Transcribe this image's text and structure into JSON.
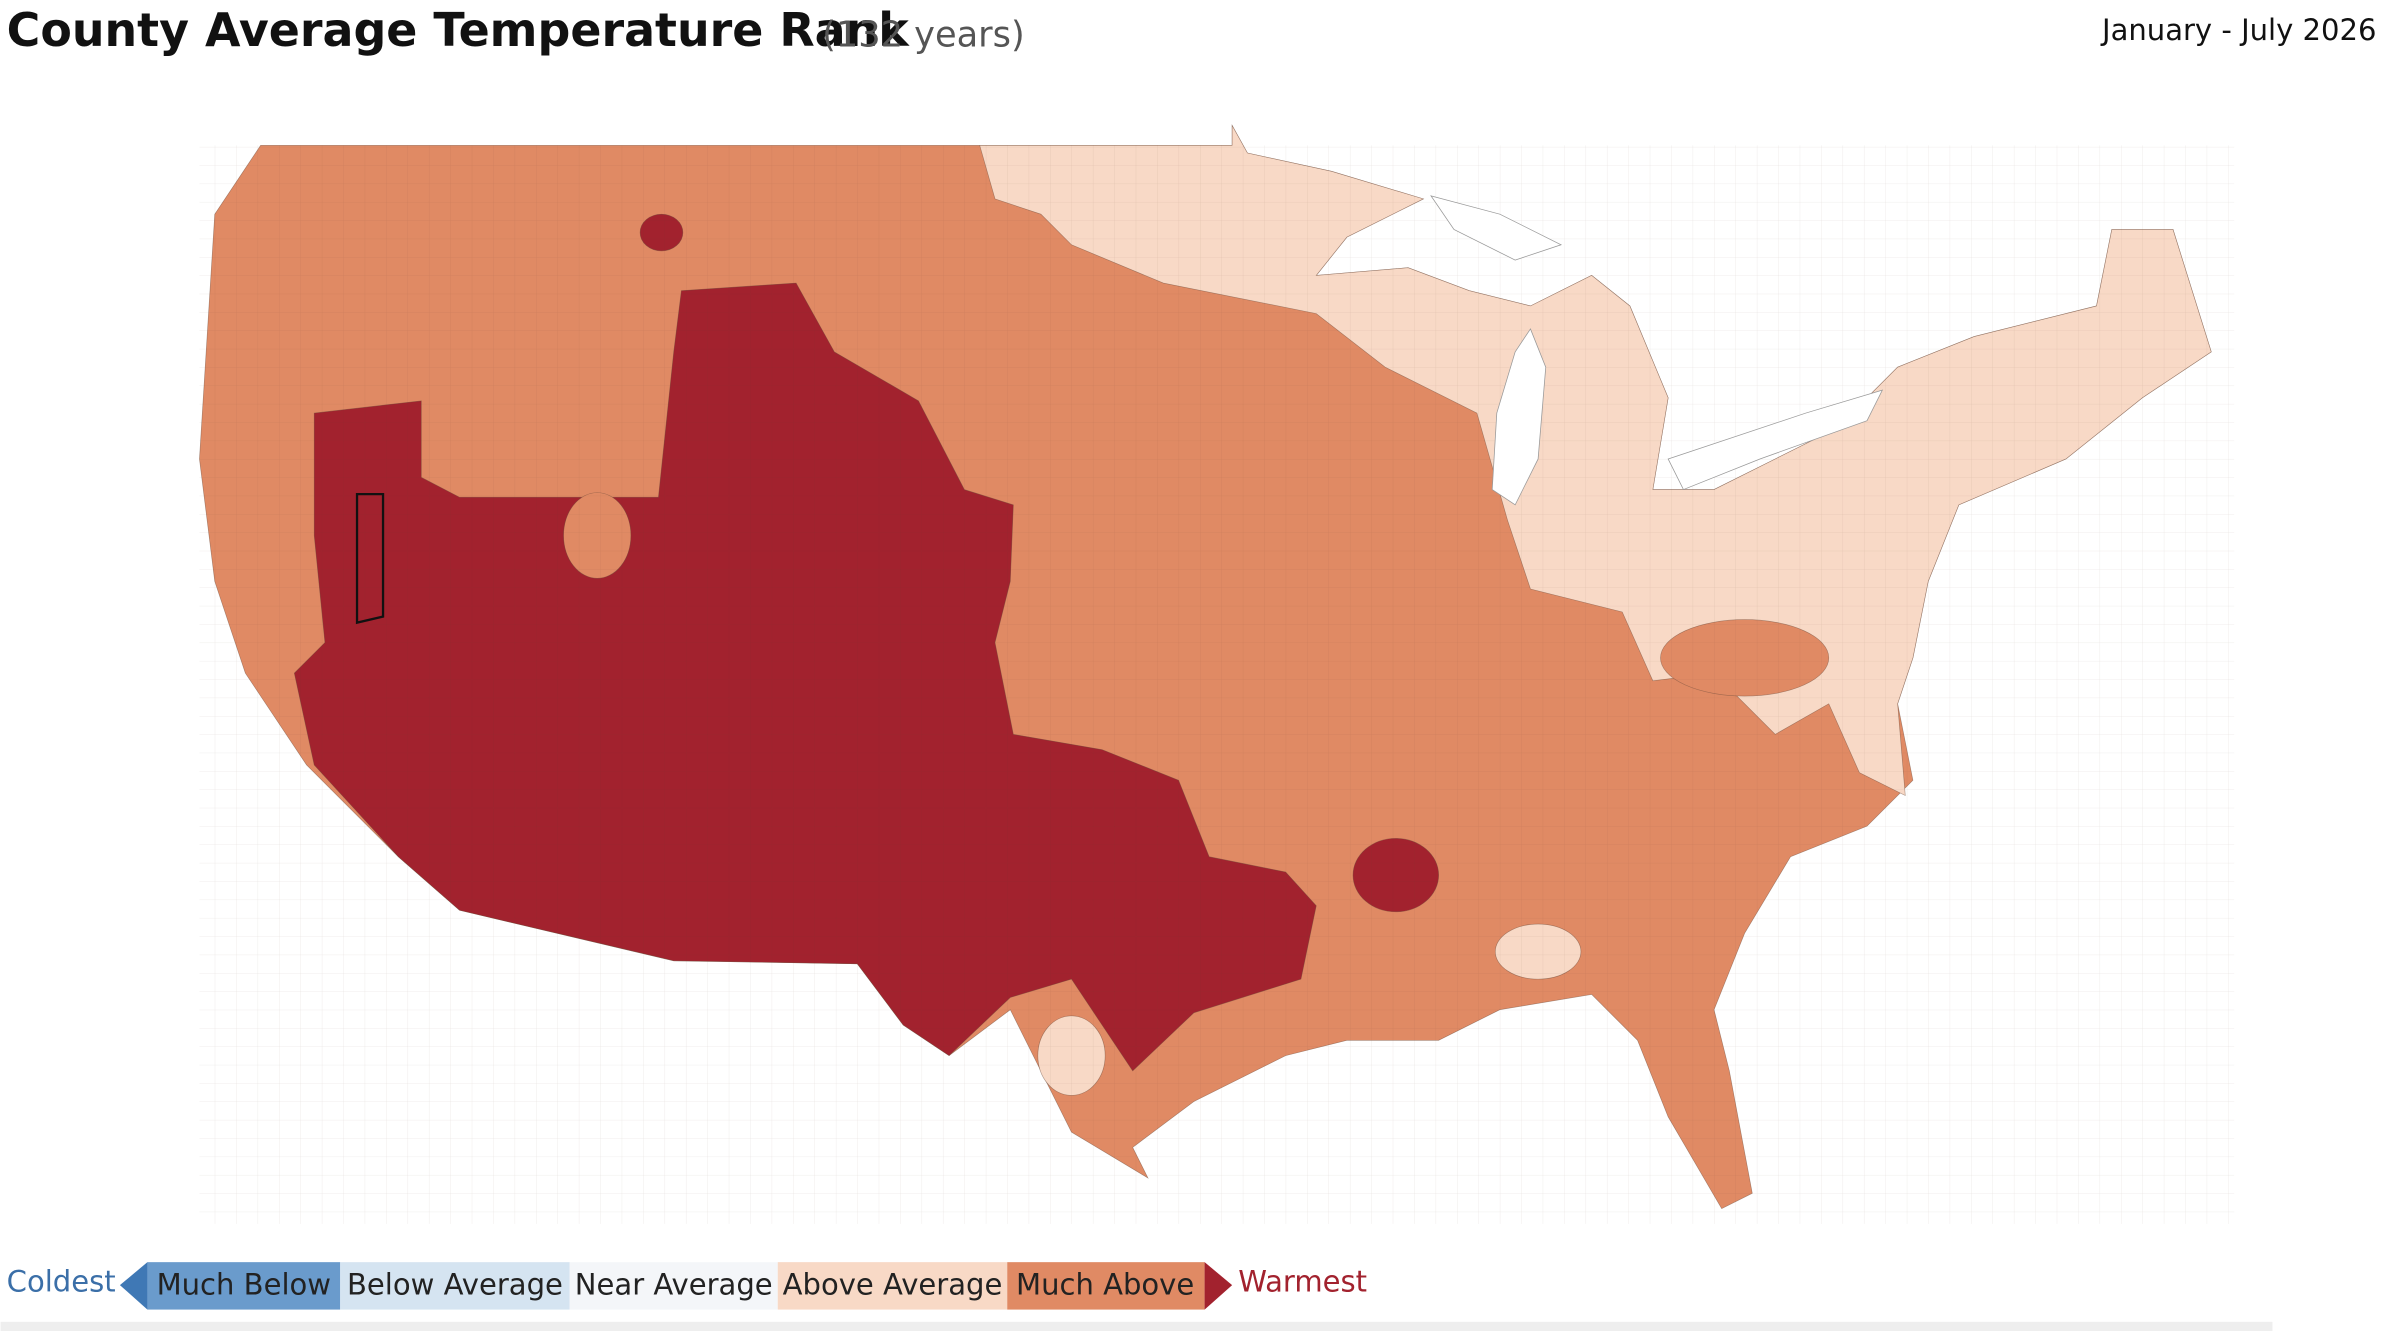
{
  "header": {
    "title": "County Average Temperature Rank",
    "subtitle": "(132 years)",
    "period": "January - July 2026"
  },
  "legend": {
    "low": "Coldest",
    "categories": [
      "Much Below",
      "Below Average",
      "Near Average",
      "Above Average",
      "Much Above"
    ],
    "high": "Warmest"
  }
}
